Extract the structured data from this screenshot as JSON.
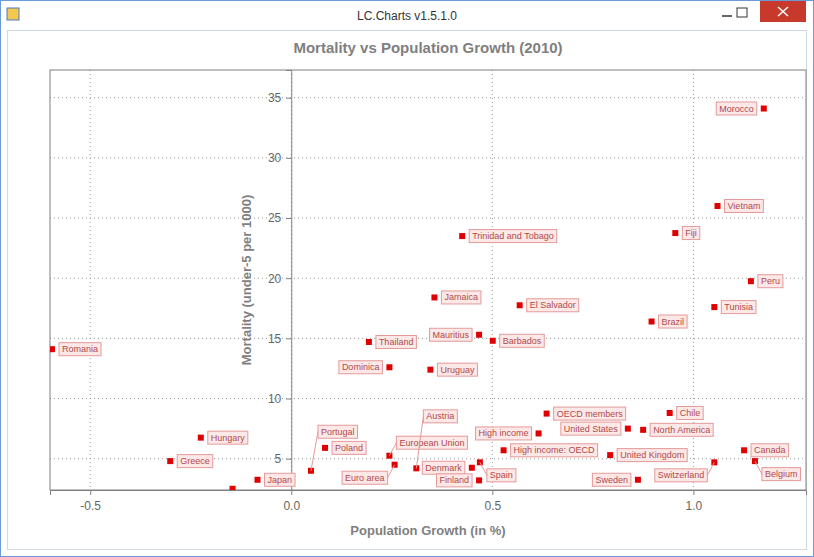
{
  "window_title": "LC.Charts v1.5.1.0",
  "chart_data": {
    "type": "scatter",
    "title": "Mortality vs Population Growth (2010)",
    "x_label": "Population Growth (in %)",
    "y_label": "Mortality (under-5 per 1000)",
    "labels": [
      "Morocco",
      "Vietnam",
      "Fiji",
      "Trinidad and Tobago",
      "Peru",
      "Jamaica",
      "El Salvador",
      "Tunisia",
      "Brazil",
      "Mauritius",
      "Barbados",
      "Thailand",
      "Romania",
      "Dominica",
      "Uruguay",
      "OECD members",
      "Chile",
      "United States",
      "North America",
      "High income",
      "Hungary",
      "Poland",
      "High income: OECD",
      "Canada",
      "United Kingdom",
      "European Union",
      "Greece",
      "Belgium",
      "Spain",
      "Switzerland",
      "Euro area",
      "Denmark",
      "Austria",
      "Portugal",
      "Japan",
      "Sweden",
      "Finland",
      null
    ],
    "x": [
      1.175,
      1.06,
      0.955,
      0.425,
      1.143,
      0.356,
      0.568,
      1.052,
      0.896,
      0.467,
      0.501,
      0.193,
      -0.595,
      0.244,
      0.346,
      0.635,
      0.941,
      0.837,
      0.875,
      0.615,
      -0.225,
      0.084,
      0.528,
      1.126,
      0.793,
      0.244,
      -0.301,
      1.153,
      0.469,
      1.052,
      0.257,
      0.449,
      0.311,
      0.049,
      -0.084,
      0.862,
      0.467,
      -0.146
    ],
    "values": [
      34.1,
      26.0,
      23.75,
      23.5,
      19.75,
      18.4,
      17.75,
      17.6,
      16.4,
      15.3,
      14.8,
      14.7,
      14.1,
      12.6,
      12.4,
      8.75,
      8.8,
      7.5,
      7.4,
      7.1,
      6.75,
      5.9,
      5.7,
      5.7,
      5.3,
      5.25,
      4.8,
      4.8,
      4.7,
      4.7,
      4.5,
      4.25,
      4.2,
      4.0,
      3.25,
      3.25,
      3.2,
      2.5
    ],
    "color": "#e00000",
    "marker": "square",
    "xlim": [
      -0.6,
      1.28
    ],
    "ylim": [
      2.4,
      37.3
    ],
    "xticks": [
      -0.5,
      {
        "value": 0,
        "label": "0.0"
      },
      0.5,
      {
        "value": 1,
        "label": "1.0"
      }
    ],
    "yticks": [
      5,
      10,
      15,
      20,
      25,
      30,
      35
    ],
    "grid": true
  }
}
